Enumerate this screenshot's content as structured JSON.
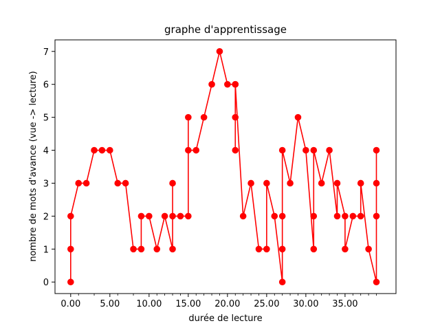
{
  "chart_data": {
    "type": "line",
    "title": "graphe d'apprentissage",
    "xlabel": "durée de lecture",
    "ylabel": "nombre de mots d'avance (vue -> lecture)",
    "xlim": [
      -2,
      41.5
    ],
    "ylim": [
      -0.35,
      7.35
    ],
    "xticks": [
      0,
      5,
      10,
      15,
      20,
      25,
      30,
      35
    ],
    "xtick_labels": [
      "0.00",
      "5.00",
      "10.00",
      "15.00",
      "20.00",
      "25.00",
      "30.00",
      "35.00"
    ],
    "xminor_ticks": [
      1,
      3,
      6,
      8,
      11,
      12,
      13,
      14,
      16,
      17,
      18,
      19,
      21,
      22,
      23,
      24,
      26,
      27,
      28,
      29,
      31,
      32,
      33,
      34,
      36,
      37,
      38,
      39
    ],
    "yticks": [
      0,
      1,
      2,
      3,
      4,
      5,
      6,
      7
    ],
    "ytick_labels": [
      "0",
      "1",
      "2",
      "3",
      "4",
      "5",
      "6",
      "7"
    ],
    "grid": false,
    "color": "#ff0000",
    "series": [
      {
        "x": [
          0,
          0,
          0,
          1,
          2,
          3,
          4,
          5,
          6,
          7,
          8,
          9,
          9,
          10,
          11,
          12,
          13,
          13,
          13,
          14,
          15,
          15,
          15,
          16,
          17,
          18,
          19,
          20,
          21,
          21,
          21,
          21,
          22,
          23,
          24,
          25,
          25,
          26,
          27,
          27,
          27,
          27,
          28,
          29,
          30,
          31,
          31,
          31,
          32,
          33,
          34,
          34,
          35,
          35,
          36,
          37,
          37,
          38,
          39,
          39,
          39,
          39
        ],
        "y": [
          0,
          1,
          2,
          3,
          3,
          4,
          4,
          4,
          3,
          3,
          1,
          1,
          2,
          2,
          1,
          2,
          1,
          3,
          2,
          2,
          2,
          5,
          4,
          4,
          5,
          6,
          7,
          6,
          6,
          5,
          4,
          6,
          2,
          3,
          1,
          1,
          3,
          2,
          0,
          1,
          2,
          4,
          3,
          5,
          4,
          1,
          2,
          4,
          3,
          4,
          2,
          3,
          2,
          1,
          2,
          2,
          3,
          1,
          0,
          2,
          3,
          4
        ]
      }
    ]
  }
}
